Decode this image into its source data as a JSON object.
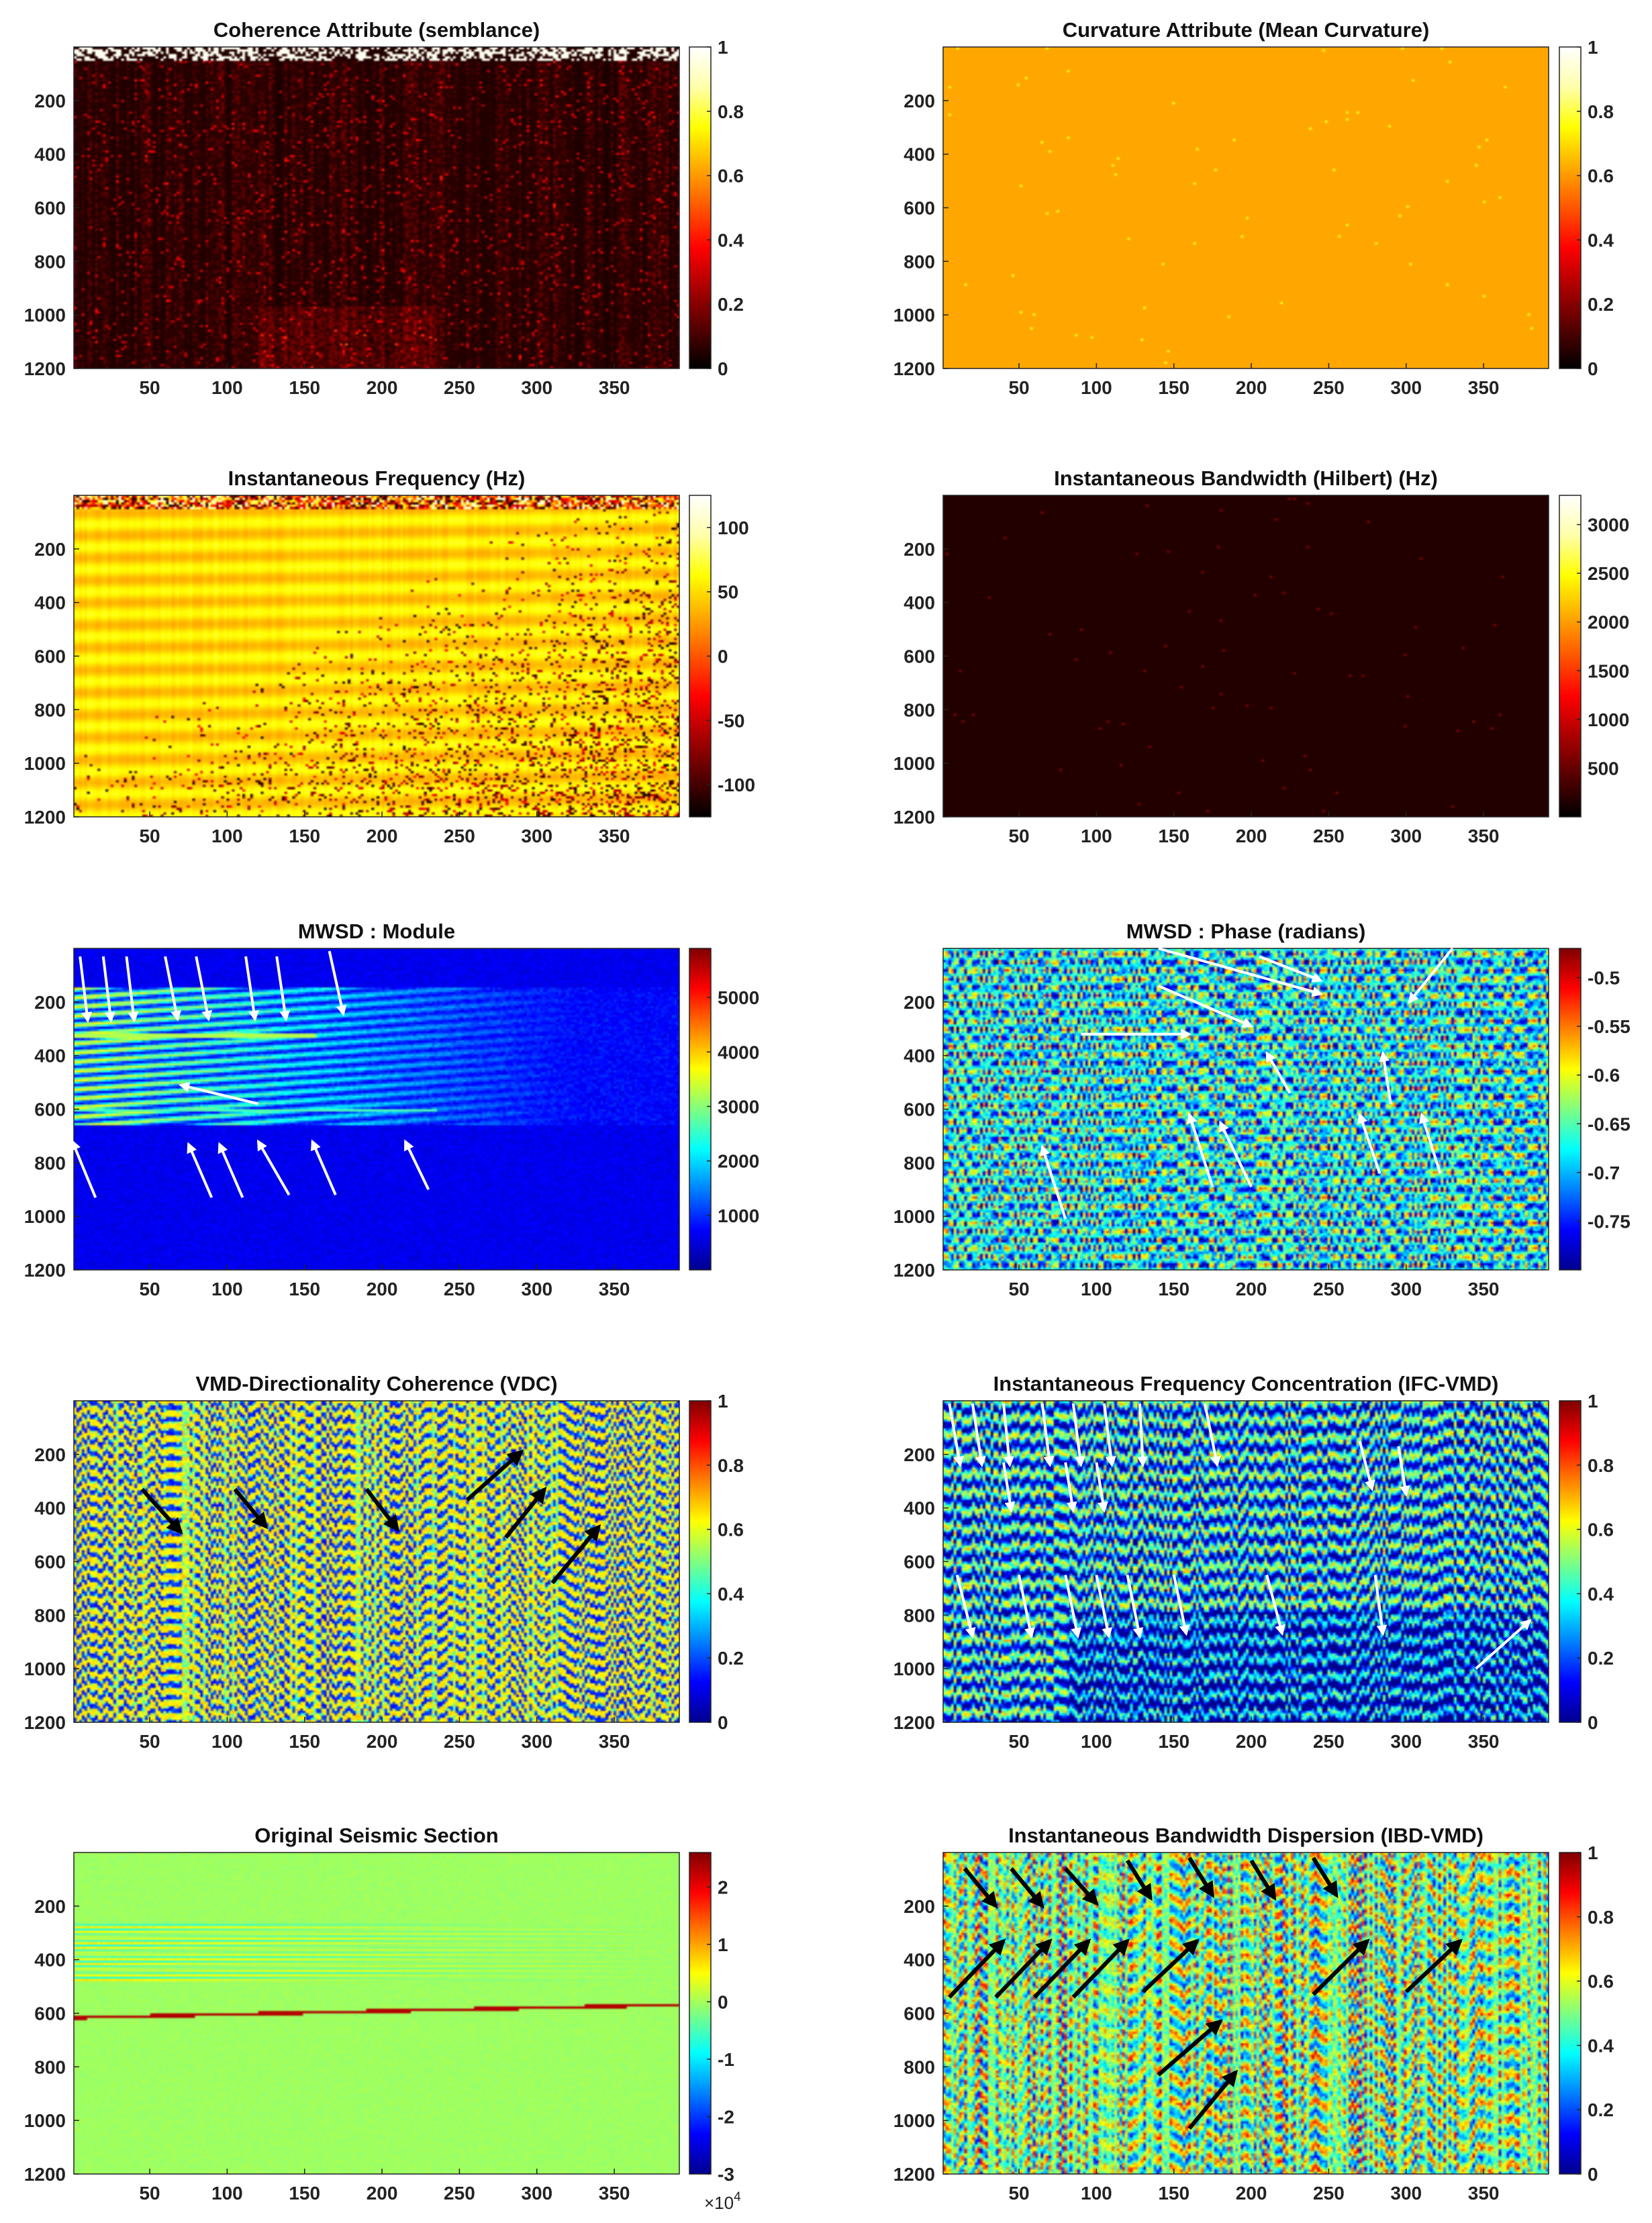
{
  "colors": {
    "hot": [
      "#000000",
      "#550000",
      "#aa0000",
      "#ff0000",
      "#ff5500",
      "#ffaa00",
      "#ffff00",
      "#ffffaa",
      "#ffffff"
    ],
    "jet": [
      "#00008f",
      "#0000ff",
      "#0080ff",
      "#00ffff",
      "#80ff80",
      "#ffff00",
      "#ff8000",
      "#ff0000",
      "#800000"
    ],
    "arrow_white": "#ffffff",
    "arrow_black": "#000000"
  },
  "chart_data": [
    {
      "type": "heatmap",
      "title": "Coherence Attribute (semblance)",
      "colormap": "hot",
      "xlim": [
        1,
        392
      ],
      "ylim": [
        1200,
        0
      ],
      "xticks": [
        50,
        100,
        150,
        200,
        250,
        300,
        350
      ],
      "yticks": [
        200,
        400,
        600,
        800,
        1000,
        1200
      ],
      "clim": [
        0,
        1
      ],
      "cbar_ticks": [
        "0",
        "0.2",
        "0.4",
        "0.6",
        "0.8",
        "1"
      ],
      "cbar_tick_values": [
        0,
        0.2,
        0.4,
        0.6,
        0.8,
        1
      ],
      "pattern": "coherence"
    },
    {
      "type": "heatmap",
      "title": "Curvature Attribute (Mean Curvature)",
      "colormap": "hot",
      "xlim": [
        1,
        392
      ],
      "ylim": [
        1200,
        0
      ],
      "xticks": [
        50,
        100,
        150,
        200,
        250,
        300,
        350
      ],
      "yticks": [
        200,
        400,
        600,
        800,
        1000,
        1200
      ],
      "clim": [
        0,
        1
      ],
      "cbar_ticks": [
        "0",
        "0.2",
        "0.4",
        "0.6",
        "0.8",
        "1"
      ],
      "cbar_tick_values": [
        0,
        0.2,
        0.4,
        0.6,
        0.8,
        1
      ],
      "pattern": "flat",
      "flat_value": 0.62
    },
    {
      "type": "heatmap",
      "title": "Instantaneous Frequency (Hz)",
      "colormap": "hot",
      "xlim": [
        1,
        392
      ],
      "ylim": [
        1200,
        0
      ],
      "xticks": [
        50,
        100,
        150,
        200,
        250,
        300,
        350
      ],
      "yticks": [
        200,
        400,
        600,
        800,
        1000,
        1200
      ],
      "clim": [
        -125,
        125
      ],
      "cbar_ticks": [
        "-100",
        "-50",
        "0",
        "50",
        "100"
      ],
      "cbar_tick_values": [
        -100,
        -50,
        0,
        50,
        100
      ],
      "pattern": "instfreq"
    },
    {
      "type": "heatmap",
      "title": "Instantaneous Bandwidth (Hilbert) (Hz)",
      "colormap": "hot",
      "xlim": [
        1,
        392
      ],
      "ylim": [
        1200,
        0
      ],
      "xticks": [
        50,
        100,
        150,
        200,
        250,
        300,
        350
      ],
      "yticks": [
        200,
        400,
        600,
        800,
        1000,
        1200
      ],
      "clim": [
        0,
        3300
      ],
      "cbar_ticks": [
        "500",
        "1000",
        "1500",
        "2000",
        "2500",
        "3000"
      ],
      "cbar_tick_values": [
        500,
        1000,
        1500,
        2000,
        2500,
        3000
      ],
      "pattern": "flat",
      "flat_value": 0.05
    },
    {
      "type": "heatmap",
      "title": "MWSD : Module",
      "colormap": "jet",
      "xlim": [
        1,
        392
      ],
      "ylim": [
        1200,
        0
      ],
      "xticks": [
        50,
        100,
        150,
        200,
        250,
        300,
        350
      ],
      "yticks": [
        200,
        400,
        600,
        800,
        1000,
        1200
      ],
      "clim": [
        0,
        5900
      ],
      "cbar_ticks": [
        "1000",
        "2000",
        "3000",
        "4000",
        "5000"
      ],
      "cbar_tick_values": [
        1000,
        2000,
        3000,
        4000,
        5000
      ],
      "pattern": "module",
      "arrows": {
        "color": "white",
        "list": [
          [
            5,
            30,
            10,
            270
          ],
          [
            20,
            30,
            25,
            270
          ],
          [
            35,
            30,
            40,
            270
          ],
          [
            60,
            30,
            68,
            265
          ],
          [
            80,
            30,
            88,
            265
          ],
          [
            112,
            30,
            118,
            265
          ],
          [
            132,
            30,
            138,
            265
          ],
          [
            166,
            10,
            175,
            245
          ],
          [
            120,
            580,
            70,
            510
          ],
          [
            15,
            930,
            0,
            720
          ],
          [
            90,
            930,
            75,
            730
          ],
          [
            110,
            930,
            95,
            730
          ],
          [
            140,
            920,
            120,
            720
          ],
          [
            170,
            920,
            155,
            720
          ],
          [
            230,
            900,
            215,
            720
          ]
        ]
      }
    },
    {
      "type": "heatmap",
      "title": "MWSD : Phase (radians)",
      "colormap": "jet",
      "xlim": [
        1,
        392
      ],
      "ylim": [
        1200,
        0
      ],
      "xticks": [
        50,
        100,
        150,
        200,
        250,
        300,
        350
      ],
      "yticks": [
        200,
        400,
        600,
        800,
        1000,
        1200
      ],
      "clim": [
        -0.8,
        -0.47
      ],
      "cbar_ticks": [
        "-0.75",
        "-0.7",
        "-0.65",
        "-0.6",
        "-0.55",
        "-0.5"
      ],
      "cbar_tick_values": [
        -0.75,
        -0.7,
        -0.65,
        -0.6,
        -0.55,
        -0.5
      ],
      "pattern": "phase",
      "arrows": {
        "color": "white",
        "list": [
          [
            140,
            0,
            245,
            170
          ],
          [
            205,
            30,
            245,
            120
          ],
          [
            330,
            0,
            302,
            200
          ],
          [
            140,
            140,
            200,
            290
          ],
          [
            90,
            320,
            160,
            320
          ],
          [
            225,
            540,
            210,
            390
          ],
          [
            290,
            580,
            285,
            390
          ],
          [
            80,
            1010,
            65,
            740
          ],
          [
            175,
            890,
            160,
            620
          ],
          [
            200,
            890,
            180,
            650
          ],
          [
            283,
            840,
            270,
            620
          ],
          [
            322,
            840,
            310,
            620
          ]
        ]
      }
    },
    {
      "type": "heatmap",
      "title": "VMD-Directionality Coherence (VDC)",
      "colormap": "jet",
      "xlim": [
        1,
        392
      ],
      "ylim": [
        1200,
        0
      ],
      "xticks": [
        50,
        100,
        150,
        200,
        250,
        300,
        350
      ],
      "yticks": [
        200,
        400,
        600,
        800,
        1000,
        1200
      ],
      "clim": [
        0,
        1
      ],
      "cbar_ticks": [
        "0",
        "0.2",
        "0.4",
        "0.6",
        "0.8",
        "1"
      ],
      "cbar_tick_values": [
        0,
        0.2,
        0.4,
        0.6,
        0.8,
        1
      ],
      "pattern": "vdc",
      "arrows": {
        "color": "black",
        "list": [
          [
            45,
            330,
            70,
            490
          ],
          [
            105,
            330,
            125,
            470
          ],
          [
            190,
            330,
            210,
            480
          ],
          [
            255,
            370,
            290,
            190
          ],
          [
            280,
            510,
            305,
            330
          ],
          [
            310,
            680,
            340,
            470
          ]
        ]
      }
    },
    {
      "type": "heatmap",
      "title": "Instantaneous Frequency Concentration (IFC-VMD)",
      "colormap": "jet",
      "xlim": [
        1,
        392
      ],
      "ylim": [
        1200,
        0
      ],
      "xticks": [
        50,
        100,
        150,
        200,
        250,
        300,
        350
      ],
      "yticks": [
        200,
        400,
        600,
        800,
        1000,
        1200
      ],
      "clim": [
        0,
        1
      ],
      "cbar_ticks": [
        "0",
        "0.2",
        "0.4",
        "0.6",
        "0.8",
        "1"
      ],
      "cbar_tick_values": [
        0,
        0.2,
        0.4,
        0.6,
        0.8,
        1
      ],
      "pattern": "ifc",
      "arrows": {
        "color": "white",
        "list": [
          [
            5,
            10,
            12,
            240
          ],
          [
            20,
            10,
            26,
            240
          ],
          [
            40,
            10,
            44,
            240
          ],
          [
            65,
            10,
            70,
            240
          ],
          [
            85,
            10,
            90,
            240
          ],
          [
            105,
            10,
            110,
            240
          ],
          [
            128,
            10,
            130,
            240
          ],
          [
            170,
            10,
            178,
            240
          ],
          [
            270,
            150,
            278,
            330
          ],
          [
            295,
            170,
            300,
            350
          ],
          [
            40,
            230,
            45,
            410
          ],
          [
            80,
            230,
            85,
            410
          ],
          [
            100,
            230,
            105,
            410
          ],
          [
            10,
            650,
            20,
            880
          ],
          [
            50,
            650,
            58,
            880
          ],
          [
            80,
            650,
            88,
            880
          ],
          [
            100,
            650,
            108,
            880
          ],
          [
            120,
            650,
            128,
            880
          ],
          [
            150,
            650,
            158,
            870
          ],
          [
            210,
            650,
            220,
            870
          ],
          [
            280,
            650,
            285,
            870
          ],
          [
            345,
            1000,
            380,
            820
          ]
        ]
      }
    },
    {
      "type": "heatmap",
      "title": "Original Seismic Section",
      "colormap": "jet",
      "xlim": [
        1,
        392
      ],
      "ylim": [
        1200,
        0
      ],
      "xticks": [
        50,
        100,
        150,
        200,
        250,
        300,
        350
      ],
      "yticks": [
        200,
        400,
        600,
        800,
        1000,
        1200
      ],
      "clim": [
        -3,
        2.6
      ],
      "cbar_ticks": [
        "-3",
        "-2",
        "-1",
        "0",
        "1",
        "2"
      ],
      "cbar_tick_values": [
        -3,
        -2,
        -1,
        0,
        1,
        2
      ],
      "cbar_exponent": "×10",
      "cbar_exponent_sup": "4",
      "pattern": "seismic"
    },
    {
      "type": "heatmap",
      "title": "Instantaneous Bandwidth Dispersion (IBD-VMD)",
      "colormap": "jet",
      "xlim": [
        1,
        392
      ],
      "ylim": [
        1200,
        0
      ],
      "xticks": [
        50,
        100,
        150,
        200,
        250,
        300,
        350
      ],
      "yticks": [
        200,
        400,
        600,
        800,
        1000,
        1200
      ],
      "clim": [
        0,
        1
      ],
      "cbar_ticks": [
        "0",
        "0.2",
        "0.4",
        "0.6",
        "0.8",
        "1"
      ],
      "cbar_tick_values": [
        0,
        0.2,
        0.4,
        0.6,
        0.8,
        1
      ],
      "pattern": "ibd",
      "arrows": {
        "color": "black",
        "list": [
          [
            15,
            60,
            35,
            200
          ],
          [
            45,
            60,
            65,
            200
          ],
          [
            80,
            60,
            100,
            190
          ],
          [
            120,
            30,
            135,
            170
          ],
          [
            160,
            20,
            175,
            160
          ],
          [
            200,
            30,
            215,
            170
          ],
          [
            240,
            20,
            255,
            160
          ],
          [
            5,
            540,
            40,
            330
          ],
          [
            35,
            540,
            70,
            330
          ],
          [
            60,
            540,
            95,
            330
          ],
          [
            85,
            540,
            120,
            330
          ],
          [
            130,
            520,
            165,
            330
          ],
          [
            240,
            530,
            275,
            330
          ],
          [
            300,
            520,
            335,
            330
          ],
          [
            140,
            830,
            180,
            630
          ],
          [
            160,
            1030,
            190,
            820
          ]
        ]
      }
    }
  ]
}
